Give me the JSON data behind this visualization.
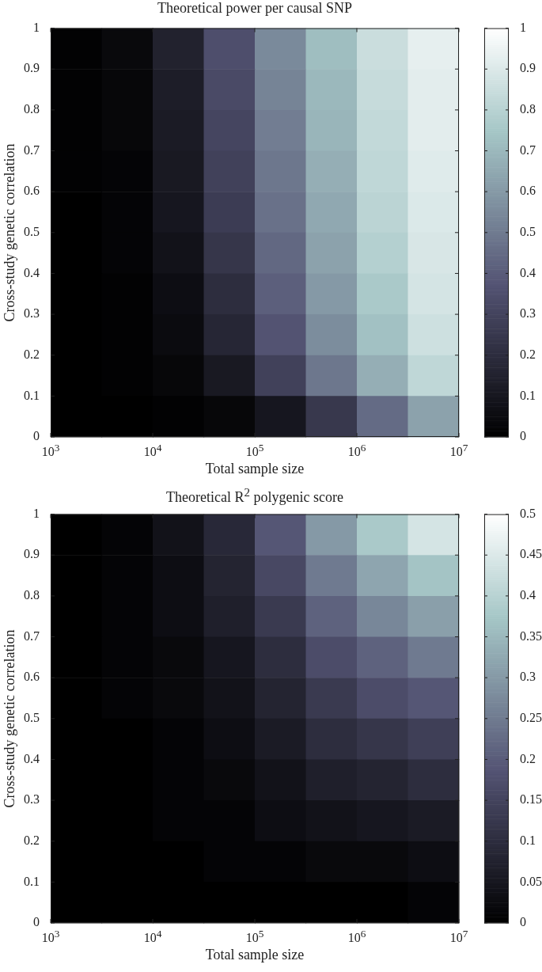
{
  "chart_data": [
    {
      "type": "heatmap",
      "title": "Theoretical power per causal SNP",
      "xlabel": "Total sample size",
      "ylabel": "Cross-study genetic correlation",
      "log": "x",
      "xlim": [
        1000,
        10000000
      ],
      "ylim": [
        0,
        1
      ],
      "xticks": [
        {
          "value": 1000,
          "label": "10$^{3}$"
        },
        {
          "value": 10000,
          "label": "10$^{4}$"
        },
        {
          "value": 100000,
          "label": "10$^{5}$"
        },
        {
          "value": 1000000,
          "label": "10$^{6}$"
        },
        {
          "value": 10000000,
          "label": "10$^{7}$"
        }
      ],
      "yticks": [
        0,
        0.1,
        0.2,
        0.3,
        0.4,
        0.5,
        0.6,
        0.7,
        0.8,
        0.9,
        1
      ],
      "clim": [
        0,
        1
      ],
      "cticks": [
        0,
        0.1,
        0.2,
        0.3,
        0.4,
        0.5,
        0.6,
        0.7,
        0.8,
        0.9,
        1
      ],
      "x": [
        1778,
        5623,
        17783,
        56234,
        177828,
        562341,
        1778279,
        5623413
      ],
      "y": [
        0.95,
        0.85,
        0.75,
        0.65,
        0.55,
        0.45,
        0.35,
        0.25,
        0.15,
        0.05
      ],
      "cells": [
        [
          0.01,
          0.04,
          0.15,
          0.35,
          0.55,
          0.72,
          0.85,
          0.93
        ],
        [
          0.01,
          0.03,
          0.13,
          0.33,
          0.53,
          0.7,
          0.84,
          0.92
        ],
        [
          0.01,
          0.03,
          0.12,
          0.31,
          0.51,
          0.69,
          0.83,
          0.92
        ],
        [
          0.01,
          0.02,
          0.11,
          0.29,
          0.49,
          0.67,
          0.82,
          0.91
        ],
        [
          0,
          0.02,
          0.1,
          0.27,
          0.47,
          0.65,
          0.81,
          0.9
        ],
        [
          0,
          0.02,
          0.08,
          0.24,
          0.44,
          0.63,
          0.79,
          0.89
        ],
        [
          0,
          0.01,
          0.06,
          0.2,
          0.41,
          0.6,
          0.76,
          0.88
        ],
        [
          0,
          0.01,
          0.05,
          0.17,
          0.37,
          0.56,
          0.73,
          0.86
        ],
        [
          0,
          0.01,
          0.03,
          0.11,
          0.29,
          0.49,
          0.67,
          0.82
        ],
        [
          0,
          0,
          0.01,
          0.03,
          0.1,
          0.25,
          0.45,
          0.63
        ]
      ]
    },
    {
      "type": "heatmap",
      "title": "Theoretical R$^{2}$ polygenic score",
      "xlabel": "Total sample size",
      "ylabel": "Cross-study genetic correlation",
      "log": "x",
      "xlim": [
        1000,
        10000000
      ],
      "ylim": [
        0,
        1
      ],
      "xticks": [
        {
          "value": 1000,
          "label": "10$^{3}$"
        },
        {
          "value": 10000,
          "label": "10$^{4}$"
        },
        {
          "value": 100000,
          "label": "10$^{5}$"
        },
        {
          "value": 1000000,
          "label": "10$^{6}$"
        },
        {
          "value": 10000000,
          "label": "10$^{7}$"
        }
      ],
      "yticks": [
        0,
        0.1,
        0.2,
        0.3,
        0.4,
        0.5,
        0.6,
        0.7,
        0.8,
        0.9,
        1
      ],
      "clim": [
        0,
        0.5
      ],
      "cticks": [
        0,
        0.05,
        0.1,
        0.15,
        0.2,
        0.25,
        0.3,
        0.35,
        0.4,
        0.45,
        0.5
      ],
      "x": [
        1778,
        5623,
        17783,
        56234,
        177828,
        562341,
        1778279,
        5623413
      ],
      "y": [
        0.95,
        0.85,
        0.75,
        0.65,
        0.55,
        0.45,
        0.35,
        0.25,
        0.15,
        0.05
      ],
      "cells": [
        [
          0,
          0.01,
          0.04,
          0.09,
          0.19,
          0.3,
          0.38,
          0.44
        ],
        [
          0,
          0.01,
          0.03,
          0.08,
          0.16,
          0.25,
          0.32,
          0.37
        ],
        [
          0,
          0.01,
          0.03,
          0.07,
          0.13,
          0.21,
          0.27,
          0.31
        ],
        [
          0,
          0.01,
          0.02,
          0.05,
          0.1,
          0.17,
          0.21,
          0.25
        ],
        [
          0,
          0.01,
          0.02,
          0.04,
          0.08,
          0.13,
          0.17,
          0.19
        ],
        [
          0,
          0,
          0.01,
          0.03,
          0.06,
          0.1,
          0.12,
          0.14
        ],
        [
          0,
          0,
          0.01,
          0.02,
          0.04,
          0.07,
          0.08,
          0.1
        ],
        [
          0,
          0,
          0.01,
          0.01,
          0.03,
          0.04,
          0.05,
          0.06
        ],
        [
          0,
          0,
          0,
          0.01,
          0.01,
          0.02,
          0.02,
          0.03
        ],
        [
          0,
          0,
          0,
          0,
          0,
          0,
          0,
          0.01
        ]
      ]
    }
  ]
}
